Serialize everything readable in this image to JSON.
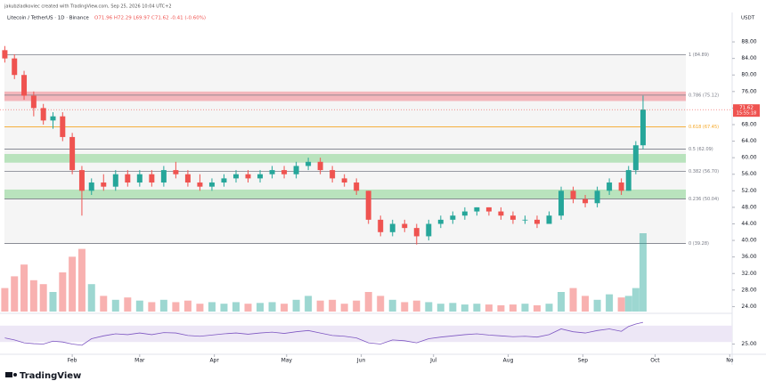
{
  "header": {
    "credit": "jakubzladkoviec created with TradingView.com, Sep 25, 2026 10:04 UTC+2",
    "symbol": "Litecoin / TetherUS · 1D · Binance",
    "ohlc": "O71.96 H72.29 L69.97 C71.62 -0.41 (-0.60%)",
    "currency": "USDT"
  },
  "footer": {
    "brand": "TradingView"
  },
  "chart_data": {
    "type": "candlestick",
    "x": [
      3,
      7,
      11,
      15,
      19,
      23,
      27,
      31,
      35,
      39,
      44,
      49,
      54,
      59,
      64,
      69,
      74,
      79,
      84,
      89,
      94,
      99,
      104,
      109,
      114,
      119,
      124,
      129,
      134,
      139,
      144,
      149,
      154,
      159,
      164,
      169,
      174,
      179,
      184,
      189,
      194,
      199,
      204,
      209,
      214,
      219,
      224,
      229,
      234,
      239,
      244,
      249,
      254,
      259,
      262,
      265,
      268
    ],
    "open": [
      86,
      84,
      80,
      75,
      72,
      69,
      70,
      65,
      57,
      52,
      54,
      53,
      56,
      54,
      56,
      54,
      57,
      56,
      54,
      53,
      54,
      55,
      56,
      55,
      56,
      57,
      56,
      58,
      59,
      57,
      55,
      54,
      52,
      45,
      42,
      44,
      43,
      41,
      44,
      45,
      46,
      47,
      48,
      47,
      46,
      45,
      45,
      44,
      46,
      52,
      50,
      49,
      52,
      54,
      52,
      57,
      63
    ],
    "high": [
      87,
      85,
      81,
      76,
      73,
      71,
      71,
      66,
      58,
      55,
      56,
      57,
      57,
      57,
      57,
      58,
      59,
      57,
      56,
      55,
      56,
      57,
      57,
      57,
      58,
      58,
      59,
      60,
      60,
      58,
      56,
      55,
      52,
      46,
      45,
      45,
      44,
      45,
      46,
      47,
      48,
      48,
      48,
      48,
      47,
      46,
      46,
      47,
      53,
      53,
      51,
      53,
      55,
      55,
      58,
      64,
      75
    ],
    "low": [
      83,
      79,
      74,
      70,
      68,
      67,
      64,
      56,
      46,
      51,
      52,
      52,
      53,
      53,
      53,
      53,
      55,
      53,
      52,
      52,
      53,
      54,
      54,
      54,
      55,
      55,
      55,
      57,
      56,
      54,
      53,
      51,
      44,
      41,
      41,
      42,
      39,
      40,
      43,
      44,
      45,
      46,
      46,
      45,
      44,
      44,
      43,
      44,
      45,
      49,
      48,
      48,
      51,
      51,
      52,
      56,
      62
    ],
    "close": [
      84,
      80,
      75,
      72,
      69,
      70,
      65,
      57,
      52,
      54,
      53,
      56,
      54,
      56,
      54,
      57,
      56,
      54,
      53,
      54,
      55,
      56,
      55,
      56,
      57,
      56,
      58,
      59,
      57,
      55,
      54,
      52,
      45,
      42,
      44,
      43,
      41,
      44,
      45,
      46,
      47,
      48,
      47,
      46,
      45,
      45,
      44,
      46,
      52,
      50,
      49,
      52,
      54,
      52,
      57,
      63,
      71.62
    ],
    "volume": [
      30,
      45,
      60,
      40,
      35,
      25,
      50,
      70,
      80,
      35,
      20,
      15,
      18,
      14,
      12,
      15,
      12,
      14,
      10,
      12,
      10,
      12,
      10,
      11,
      12,
      10,
      15,
      20,
      14,
      15,
      10,
      14,
      25,
      20,
      15,
      12,
      14,
      12,
      10,
      11,
      9,
      10,
      9,
      8,
      9,
      10,
      8,
      10,
      25,
      30,
      20,
      15,
      22,
      18,
      20,
      30,
      100
    ],
    "vlim": [
      0,
      100
    ],
    "rsi": [
      40,
      35,
      28,
      26,
      25,
      32,
      30,
      25,
      22,
      38,
      45,
      50,
      48,
      52,
      48,
      53,
      52,
      46,
      44,
      47,
      50,
      52,
      49,
      52,
      54,
      51,
      55,
      58,
      52,
      46,
      44,
      40,
      28,
      25,
      35,
      33,
      28,
      38,
      42,
      45,
      48,
      50,
      47,
      45,
      43,
      44,
      42,
      48,
      62,
      55,
      52,
      58,
      62,
      56,
      68,
      74,
      78
    ],
    "rsi_lim": [
      0,
      100
    ],
    "rsi_ticks": [
      {
        "value": 25,
        "label": "25.00"
      }
    ],
    "rsi_color": "#7e57c2",
    "up_color": "#26a69a",
    "down_color": "#ef5350",
    "xlim": [
      1,
      305
    ],
    "xticks": [
      {
        "value": 31,
        "label": "Feb"
      },
      {
        "value": 59,
        "label": "Mar"
      },
      {
        "value": 90,
        "label": "Apr"
      },
      {
        "value": 120,
        "label": "May"
      },
      {
        "value": 151,
        "label": "Jun"
      },
      {
        "value": 181,
        "label": "Jul"
      },
      {
        "value": 212,
        "label": "Aug"
      },
      {
        "value": 243,
        "label": "Sep"
      },
      {
        "value": 273,
        "label": "Oct"
      },
      {
        "value": 304,
        "label": "No"
      }
    ],
    "ylim": [
      22.8,
      94.9
    ],
    "yticks": [
      {
        "value": 24,
        "label": "24.00"
      },
      {
        "value": 28,
        "label": "28.00"
      },
      {
        "value": 32,
        "label": "32.00"
      },
      {
        "value": 36,
        "label": "36.00"
      },
      {
        "value": 40,
        "label": "40.00"
      },
      {
        "value": 44,
        "label": "44.00"
      },
      {
        "value": 48,
        "label": "48.00"
      },
      {
        "value": 52,
        "label": "52.00"
      },
      {
        "value": 56,
        "label": "56.00"
      },
      {
        "value": 60,
        "label": "60.00"
      },
      {
        "value": 64,
        "label": "64.00"
      },
      {
        "value": 68,
        "label": "68.00"
      },
      {
        "value": 72,
        "label": "72.00"
      },
      {
        "value": 76,
        "label": "76.00"
      },
      {
        "value": 80,
        "label": "80.00"
      },
      {
        "value": 84,
        "label": "84.00"
      },
      {
        "value": 88,
        "label": "88.00"
      }
    ],
    "fib_levels": [
      {
        "label": "1 (84.89)",
        "value": 84.89,
        "color": "#787b86"
      },
      {
        "label": "0.786 (75.12)",
        "value": 75.12,
        "color": "#787b86"
      },
      {
        "label": "0.618 (67.45)",
        "value": 67.45,
        "color": "#f5a623"
      },
      {
        "label": "0.5 (62.09)",
        "value": 62.09,
        "color": "#787b86"
      },
      {
        "label": "0.382 (56.70)",
        "value": 56.7,
        "color": "#787b86"
      },
      {
        "label": "0.236 (50.04)",
        "value": 50.04,
        "color": "#787b86"
      },
      {
        "label": "0 (39.28)",
        "value": 39.28,
        "color": "#787b86"
      }
    ],
    "zones": [
      {
        "low": 73.7,
        "high": 76,
        "color": "#f4b6bb"
      },
      {
        "low": 58.8,
        "high": 60.9,
        "color": "#b9e3bd"
      },
      {
        "low": 50,
        "high": 52.3,
        "color": "#b9e3bd"
      }
    ],
    "last_price": 71.62,
    "countdown": "15:55:18"
  }
}
